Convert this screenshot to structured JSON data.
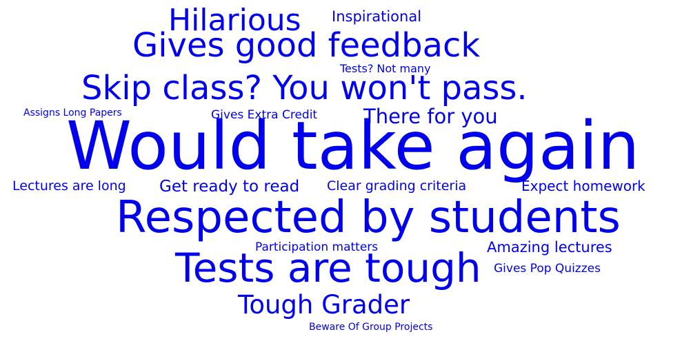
{
  "theme": {
    "word_color": "#0000ee",
    "background": "#ffffff"
  },
  "words": [
    "Would take again",
    "Respected by students",
    "Tests are tough",
    "Skip class? You won't pass.",
    "Gives good feedback",
    "Hilarious",
    "Tough Grader",
    "There for you",
    "Get ready to read",
    "Amazing lectures",
    "Expect homework",
    "Inspirational",
    "Lectures are long",
    "Clear grading criteria",
    "Participation matters",
    "Gives Extra Credit",
    "Gives Pop Quizzes",
    "Tests? Not many",
    "Assigns Long Papers",
    "Beware Of Group Projects"
  ]
}
